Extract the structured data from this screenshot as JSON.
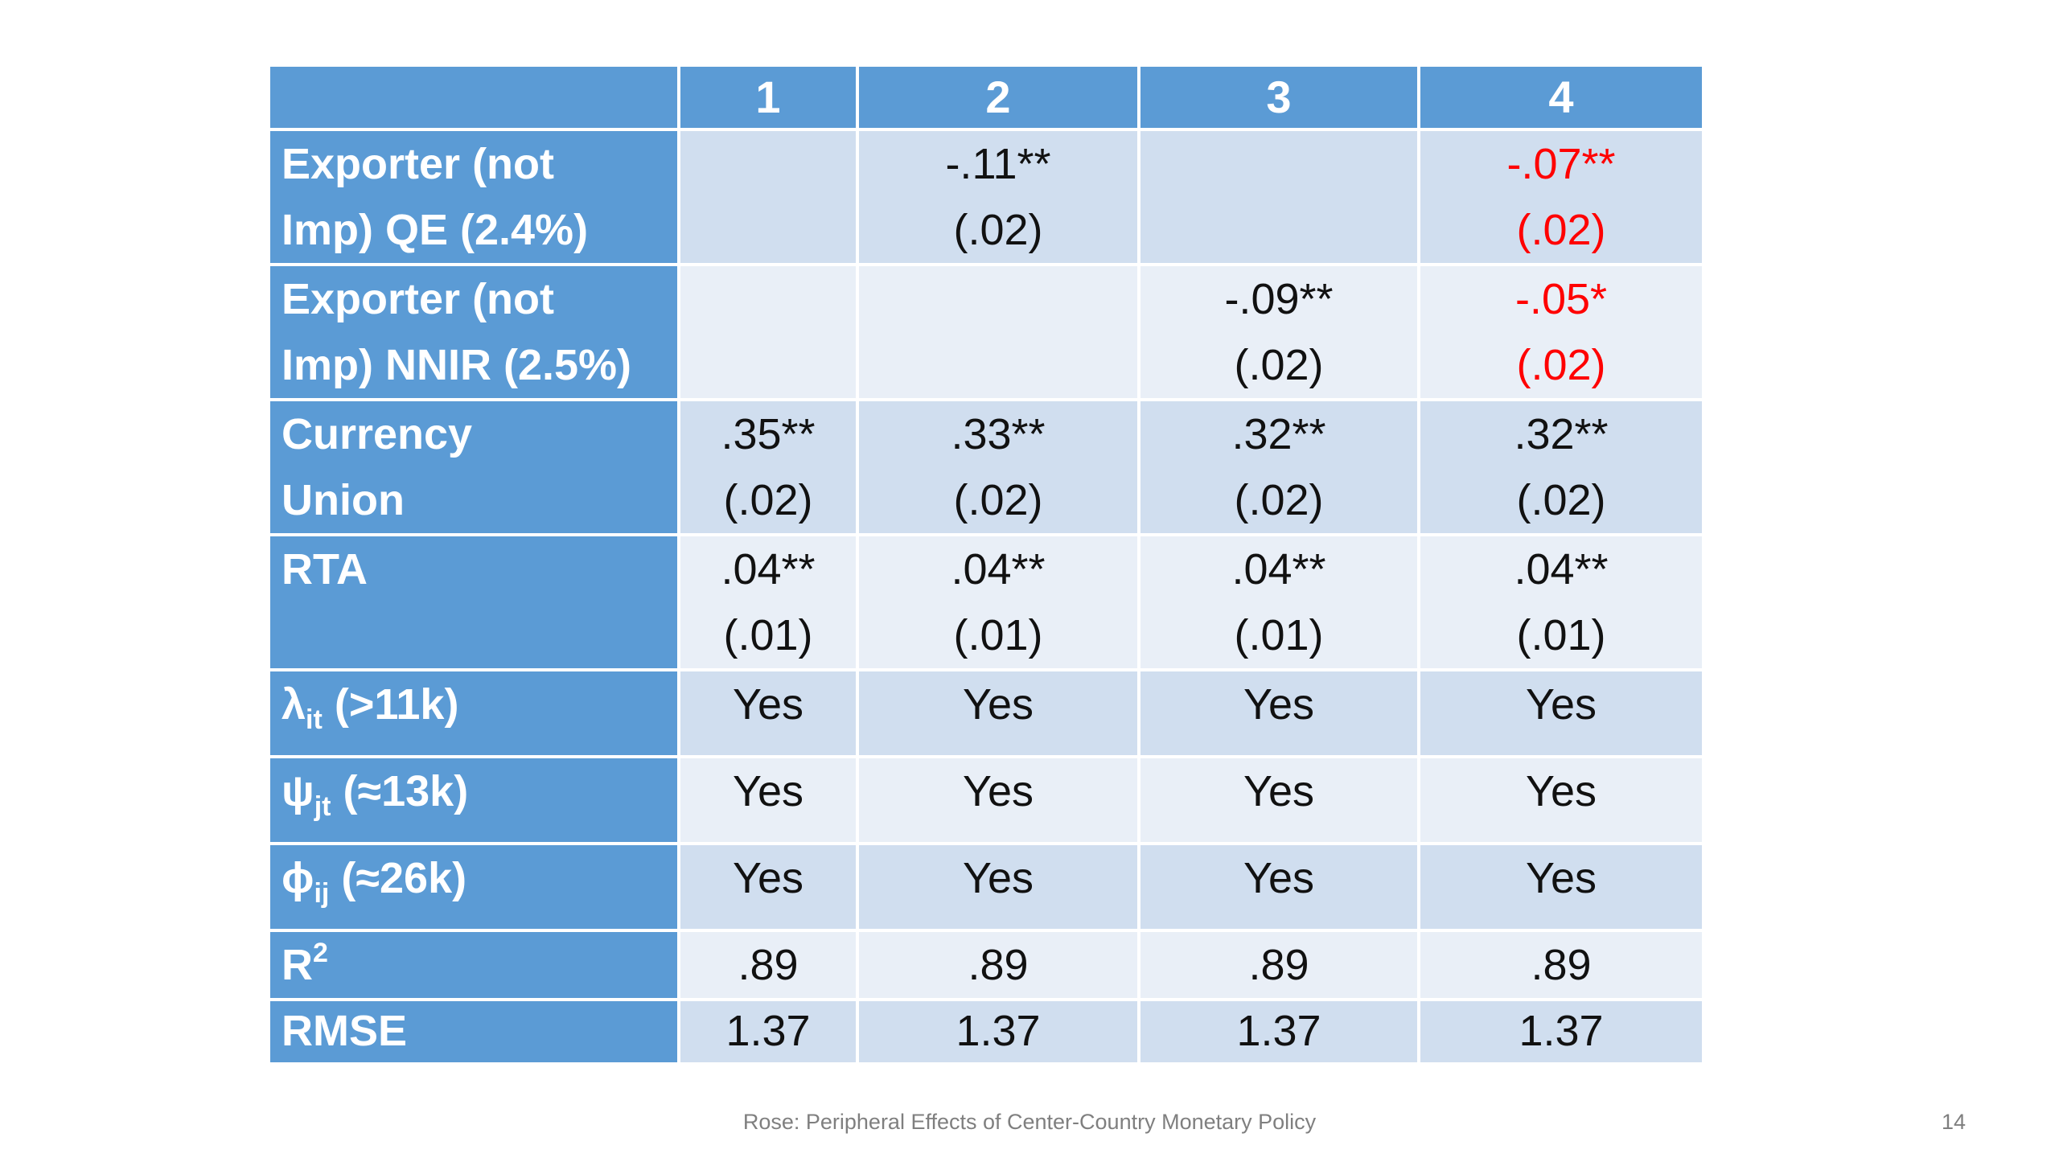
{
  "table": {
    "columns": [
      "",
      "1",
      "2",
      "3",
      "4"
    ],
    "rows": [
      {
        "label_lines": [
          "Exporter (not",
          "Imp) QE (2.4%)"
        ],
        "cells": [
          {
            "coef": "",
            "se": ""
          },
          {
            "coef": "-.11**",
            "se": "(.02)"
          },
          {
            "coef": "",
            "se": ""
          },
          {
            "coef": "-.07**",
            "se": "(.02)"
          }
        ]
      },
      {
        "label_lines": [
          "Exporter (not",
          "Imp) NNIR (2.5%)"
        ],
        "cells": [
          {
            "coef": "",
            "se": ""
          },
          {
            "coef": "",
            "se": ""
          },
          {
            "coef": "-.09**",
            "se": "(.02)"
          },
          {
            "coef": "-.05*",
            "se": "(.02)"
          }
        ]
      },
      {
        "label_lines": [
          "Currency",
          "Union"
        ],
        "cells": [
          {
            "coef": ".35**",
            "se": "(.02)"
          },
          {
            "coef": ".33**",
            "se": "(.02)"
          },
          {
            "coef": ".32**",
            "se": "(.02)"
          },
          {
            "coef": ".32**",
            "se": "(.02)"
          }
        ]
      },
      {
        "label_lines": [
          "RTA"
        ],
        "cells": [
          {
            "coef": ".04**",
            "se": "(.01)"
          },
          {
            "coef": ".04**",
            "se": "(.01)"
          },
          {
            "coef": ".04**",
            "se": "(.01)"
          },
          {
            "coef": ".04**",
            "se": "(.01)"
          }
        ]
      },
      {
        "label": {
          "symbol": "λ",
          "sub": "it",
          "rest": " (>11k)"
        },
        "cells": [
          "Yes",
          "Yes",
          "Yes",
          "Yes"
        ]
      },
      {
        "label": {
          "symbol": "ψ",
          "sub": "jt",
          "rest": " (≈13k)"
        },
        "cells": [
          "Yes",
          "Yes",
          "Yes",
          "Yes"
        ]
      },
      {
        "label": {
          "symbol": "ϕ",
          "sub": "ij",
          "rest": " (≈26k)"
        },
        "cells": [
          "Yes",
          "Yes",
          "Yes",
          "Yes"
        ]
      },
      {
        "label": {
          "base": "R",
          "sup": "2"
        },
        "cells": [
          ".89",
          ".89",
          ".89",
          ".89"
        ]
      },
      {
        "label": {
          "text": "RMSE"
        },
        "cells": [
          "1.37",
          "1.37",
          "1.37",
          "1.37"
        ]
      }
    ]
  },
  "highlight_color": "#ff0000",
  "header_color": "#5b9bd5",
  "footer": {
    "text": "Rose: Peripheral Effects of Center-Country Monetary Policy",
    "page_number": "14"
  }
}
